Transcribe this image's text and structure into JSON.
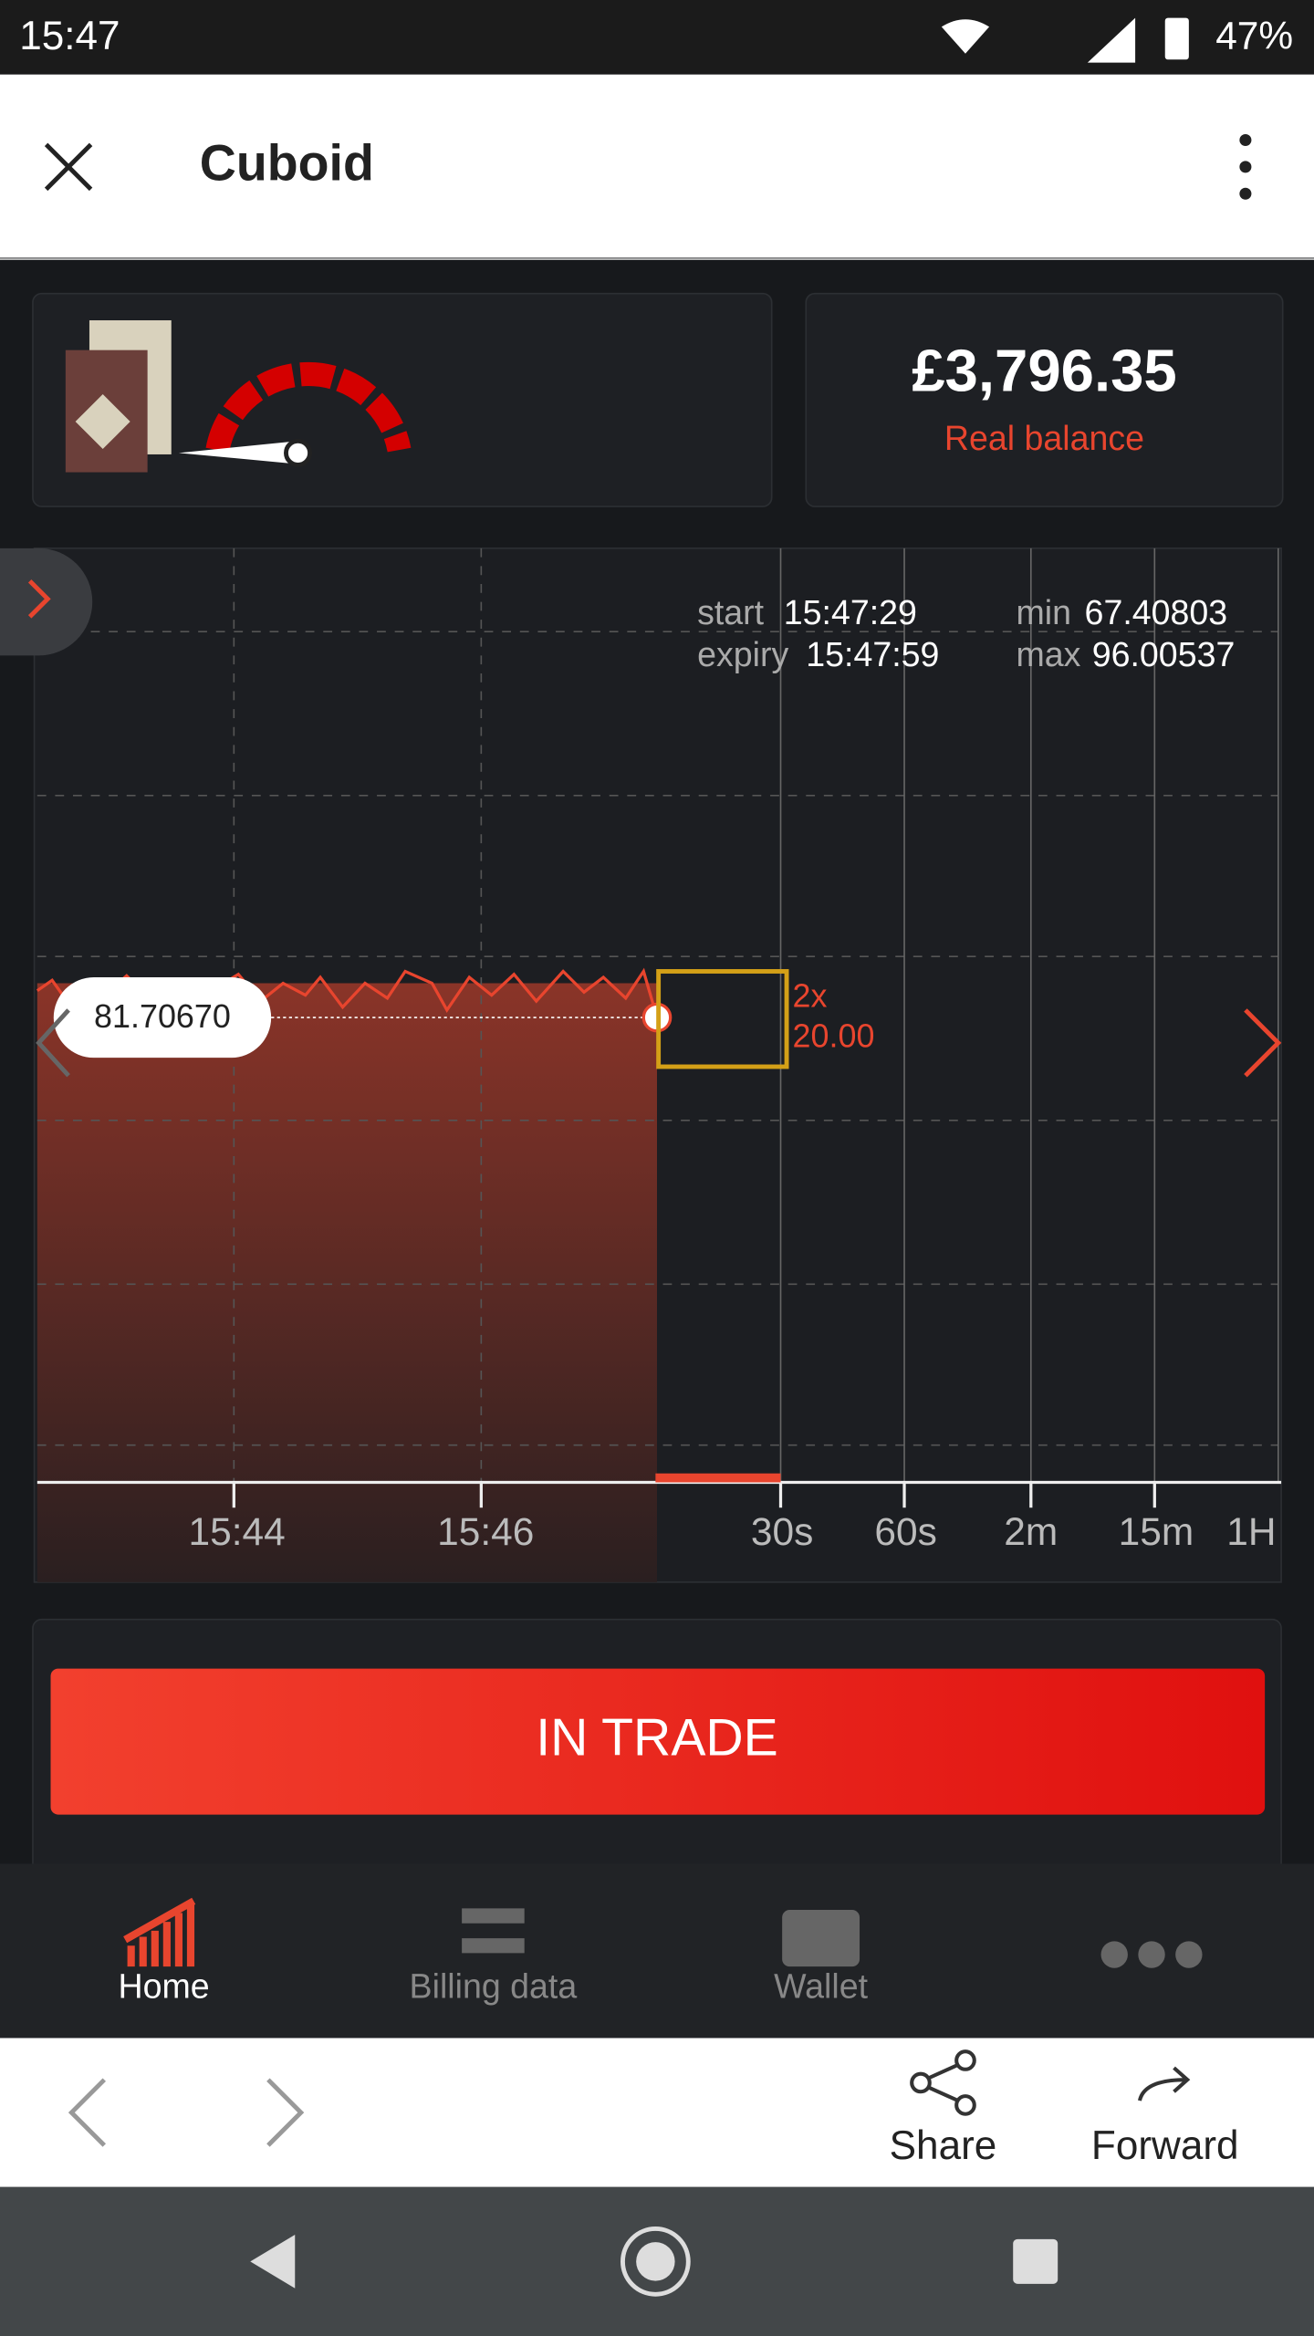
{
  "status_bar": {
    "time": "15:47",
    "battery": "47%"
  },
  "app_bar": {
    "title": "Cuboid"
  },
  "balance": {
    "amount": "£3,796.35",
    "label": "Real balance"
  },
  "chart": {
    "start_label": "start",
    "start": "15:47:29",
    "expiry_label": "expiry",
    "expiry": "15:47:59",
    "min_label": "min",
    "min": "67.40803",
    "max_label": "max",
    "max": "96.00537",
    "current_price": "81.70670",
    "multiplier": "2x",
    "stake": "20.00",
    "time_labels": [
      "15:44",
      "15:46",
      "30s",
      "60s",
      "2m",
      "15m",
      "1H"
    ]
  },
  "trade_button": "IN TRADE",
  "nav": [
    "Home",
    "Billing data",
    "Wallet"
  ],
  "browser": {
    "share": "Share",
    "forward": "Forward"
  }
}
